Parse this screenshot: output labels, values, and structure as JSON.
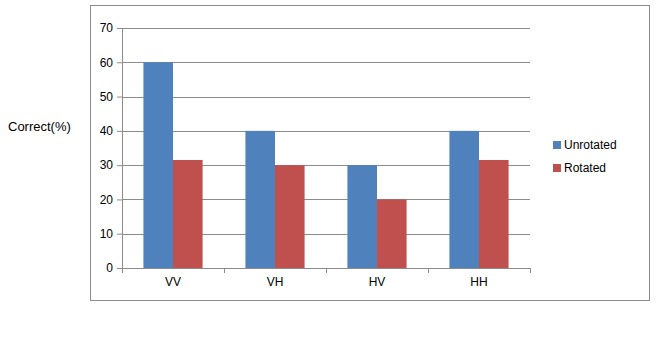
{
  "chart_data": {
    "type": "bar",
    "y_label": "Correct(%)",
    "categories": [
      "VV",
      "VH",
      "HV",
      "HH"
    ],
    "series": [
      {
        "name": "Unrotated",
        "color": "#4f81bd",
        "values": [
          60,
          40,
          30,
          40
        ]
      },
      {
        "name": "Rotated",
        "color": "#c0504d",
        "values": [
          31.5,
          30,
          20,
          31.5
        ]
      }
    ],
    "ylim": [
      0,
      70
    ],
    "yticks": [
      0,
      10,
      20,
      30,
      40,
      50,
      60,
      70
    ],
    "grid": true,
    "legend": "right"
  }
}
